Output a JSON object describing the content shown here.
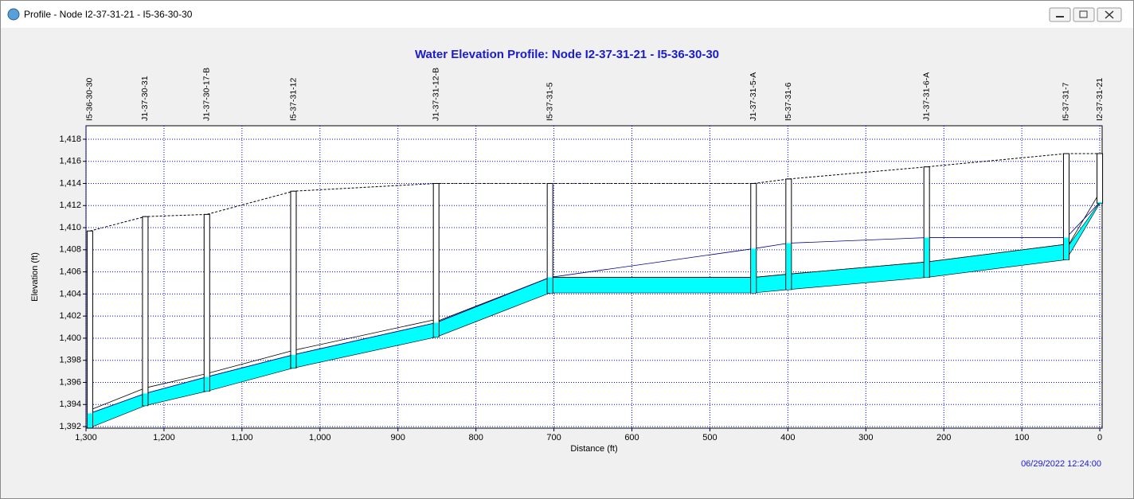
{
  "window": {
    "title": "Profile - Node I2-37-31-21 - I5-36-30-30"
  },
  "chart_data": {
    "type": "profile",
    "title": "Water Elevation Profile:  Node I2-37-31-21 - I5-36-30-30",
    "x_label": "Distance (ft)",
    "y_label": "Elevation (ft)",
    "timestamp": "06/29/2022 12:24:00",
    "xlim": [
      1300,
      -3
    ],
    "ylim": [
      1391.86,
      1419.22
    ],
    "grid": true,
    "water_color": "#00ffff",
    "hgl_color": "#00008b",
    "xticks": [
      {
        "value": 1300,
        "label": "1,300"
      },
      {
        "value": 1200,
        "label": "1,200"
      },
      {
        "value": 1100,
        "label": "1,100"
      },
      {
        "value": 1000,
        "label": "1,000"
      },
      900,
      800,
      700,
      600,
      500,
      400,
      300,
      200,
      100,
      0
    ],
    "yticks": [
      {
        "value": 1392,
        "label": "1,392"
      },
      {
        "value": 1394,
        "label": "1,394"
      },
      {
        "value": 1396,
        "label": "1,396"
      },
      {
        "value": 1398,
        "label": "1,398"
      },
      {
        "value": 1400,
        "label": "1,400"
      },
      {
        "value": 1402,
        "label": "1,402"
      },
      {
        "value": 1404,
        "label": "1,404"
      },
      {
        "value": 1406,
        "label": "1,406"
      },
      {
        "value": 1408,
        "label": "1,408"
      },
      {
        "value": 1410,
        "label": "1,410"
      },
      {
        "value": 1412,
        "label": "1,412"
      },
      {
        "value": 1414,
        "label": "1,414"
      },
      {
        "value": 1416,
        "label": "1,416"
      },
      {
        "value": 1418,
        "label": "1,418"
      }
    ],
    "nodes": [
      {
        "name": "I5-36-30-30",
        "station": 1295,
        "invert": 1391.9,
        "rim": 1409.7,
        "water": 1393.2
      },
      {
        "name": "J1-37-30-31",
        "station": 1224,
        "invert": 1393.9,
        "rim": 1411.0,
        "water": 1395.0
      },
      {
        "name": "J1-37-30-17-B",
        "station": 1145,
        "invert": 1395.2,
        "rim": 1411.2,
        "water": 1396.5
      },
      {
        "name": "I5-37-31-12",
        "station": 1034,
        "invert": 1397.3,
        "rim": 1413.3,
        "water": 1398.5
      },
      {
        "name": "J1-37-31-12-B",
        "station": 851,
        "invert": 1400.1,
        "rim": 1414.0,
        "water": 1401.4
      },
      {
        "name": "I5-37-31-5",
        "station": 705,
        "invert": 1404.1,
        "rim": 1414.0,
        "water": 1405.5
      },
      {
        "name": "J1-37-31-5-A",
        "station": 444,
        "invert": 1404.1,
        "rim": 1414.0,
        "water": 1408.1
      },
      {
        "name": "I5-37-31-6",
        "station": 399,
        "invert": 1404.4,
        "rim": 1414.4,
        "water": 1408.6
      },
      {
        "name": "J1-37-31-6-A",
        "station": 222,
        "invert": 1405.5,
        "rim": 1415.5,
        "water": 1409.1
      },
      {
        "name": "I5-37-31-7",
        "station": 43,
        "invert": 1407.1,
        "rim": 1416.7,
        "water": 1409.1
      },
      {
        "name": "I2-37-31-21",
        "station": 0,
        "invert": 1412.2,
        "rim": 1416.7,
        "water": 1412.3
      }
    ],
    "links": [
      {
        "diameter": 1.6
      },
      {
        "diameter": 1.6
      },
      {
        "diameter": 1.6
      },
      {
        "diameter": 1.6
      },
      {
        "diameter": 1.4
      },
      {
        "diameter": 1.4
      },
      {
        "diameter": 1.4
      },
      {
        "diameter": 1.4
      },
      {
        "diameter": 1.4
      },
      {
        "diameter": 1.0
      }
    ]
  }
}
